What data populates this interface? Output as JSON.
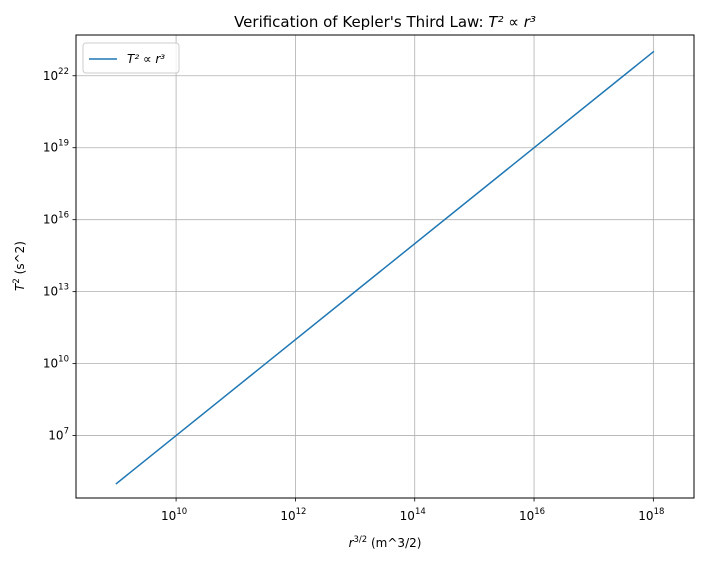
{
  "chart_data": {
    "type": "line",
    "title": {
      "prefix": "Verification of Kepler's Third Law: ",
      "math": "T² ∝ r³"
    },
    "xlabel": {
      "math_base": "r",
      "math_exp": "3/2",
      "suffix": " (m^3/2)"
    },
    "ylabel": {
      "math_base": "T",
      "math_exp": "2",
      "suffix": " (s^2)"
    },
    "x_scale": "log",
    "y_scale": "log",
    "xlim": [
      210000000,
      4.8e+18
    ],
    "ylim": [
      25000,
      5e+23
    ],
    "x_ticks": [
      {
        "base": "10",
        "exp": "10",
        "value": 10000000000.0
      },
      {
        "base": "10",
        "exp": "12",
        "value": 1000000000000.0
      },
      {
        "base": "10",
        "exp": "14",
        "value": 100000000000000.0
      },
      {
        "base": "10",
        "exp": "16",
        "value": 1e+16
      },
      {
        "base": "10",
        "exp": "18",
        "value": 1e+18
      }
    ],
    "y_ticks": [
      {
        "base": "10",
        "exp": "7",
        "value": 10000000.0
      },
      {
        "base": "10",
        "exp": "10",
        "value": 10000000000.0
      },
      {
        "base": "10",
        "exp": "13",
        "value": 10000000000000.0
      },
      {
        "base": "10",
        "exp": "16",
        "value": 1e+16
      },
      {
        "base": "10",
        "exp": "19",
        "value": 1e+19
      },
      {
        "base": "10",
        "exp": "22",
        "value": 1e+22
      }
    ],
    "grid": true,
    "legend_position": "top-left",
    "series": [
      {
        "name": "T² ∝ r³",
        "color": "#1f77b4",
        "x": [
          1000000000.0,
          1e+18
        ],
        "y": [
          100000,
          1e+23
        ]
      }
    ]
  }
}
